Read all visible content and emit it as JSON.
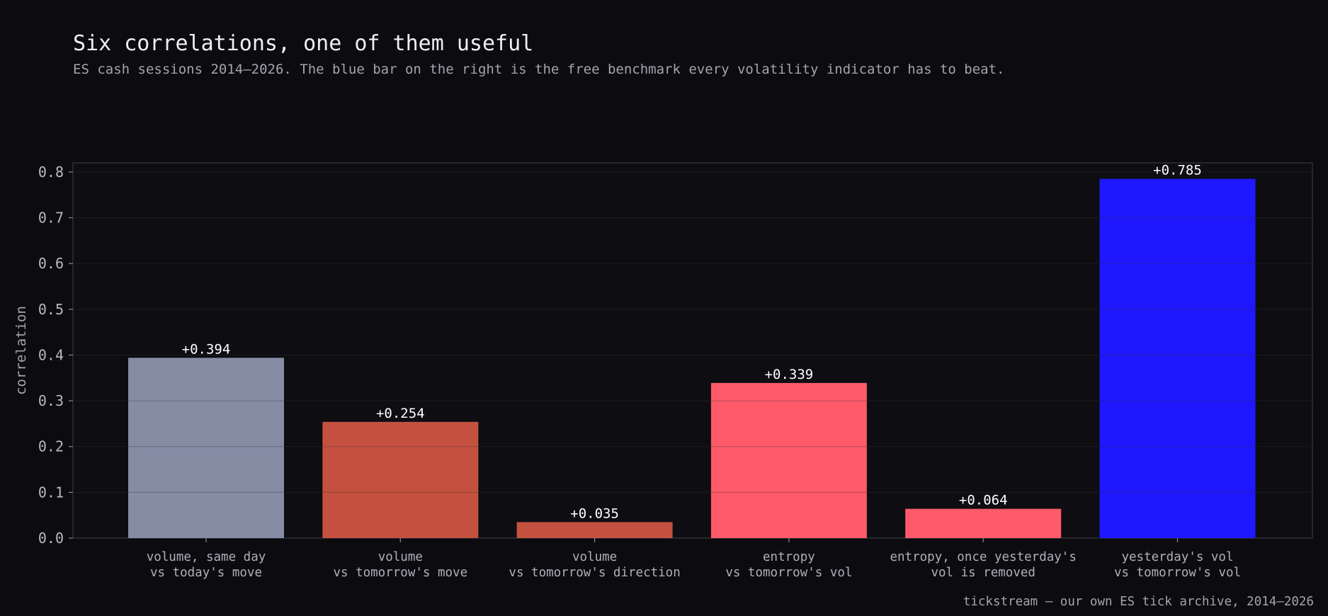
{
  "header": {
    "title": "Six correlations, one of them useful",
    "subtitle": "ES cash sessions 2014–2026. The blue bar on the right is the free benchmark every volatility indicator has to beat."
  },
  "footer": {
    "source": "tickstream — our own ES tick archive, 2014–2026"
  },
  "colors": {
    "background": "#0b0b10",
    "plot_background": "#0d0d12",
    "gray_bar": "#878ca5",
    "rust_bar": "#c4513f",
    "coral_bar": "#ff5a6a",
    "blue_bar": "#1f18ff"
  },
  "chart_data": {
    "type": "bar",
    "title": "Six correlations, one of them useful",
    "subtitle": "ES cash sessions 2014–2026. The blue bar on the right is the free benchmark every volatility indicator has to beat.",
    "xlabel": "",
    "ylabel": "correlation",
    "ylim": [
      0,
      0.82
    ],
    "yticks": [
      0.0,
      0.1,
      0.2,
      0.3,
      0.4,
      0.5,
      0.6,
      0.7,
      0.8
    ],
    "ytick_labels": [
      "0.0",
      "0.1",
      "0.2",
      "0.3",
      "0.4",
      "0.5",
      "0.6",
      "0.7",
      "0.8"
    ],
    "grid": true,
    "categories": [
      [
        "volume, same day",
        "vs today's move"
      ],
      [
        "volume",
        "vs tomorrow's move"
      ],
      [
        "volume",
        "vs tomorrow's direction"
      ],
      [
        "entropy",
        "vs tomorrow's vol"
      ],
      [
        "entropy, once yesterday's",
        "vol is removed"
      ],
      [
        "yesterday's vol",
        "vs tomorrow's vol"
      ]
    ],
    "values": [
      0.394,
      0.254,
      0.035,
      0.339,
      0.064,
      0.785
    ],
    "value_labels": [
      "+0.394",
      "+0.254",
      "+0.035",
      "+0.339",
      "+0.064",
      "+0.785"
    ],
    "bar_colors": [
      "#878ca5",
      "#c4513f",
      "#c4513f",
      "#ff5a6a",
      "#ff5a6a",
      "#1f18ff"
    ]
  }
}
